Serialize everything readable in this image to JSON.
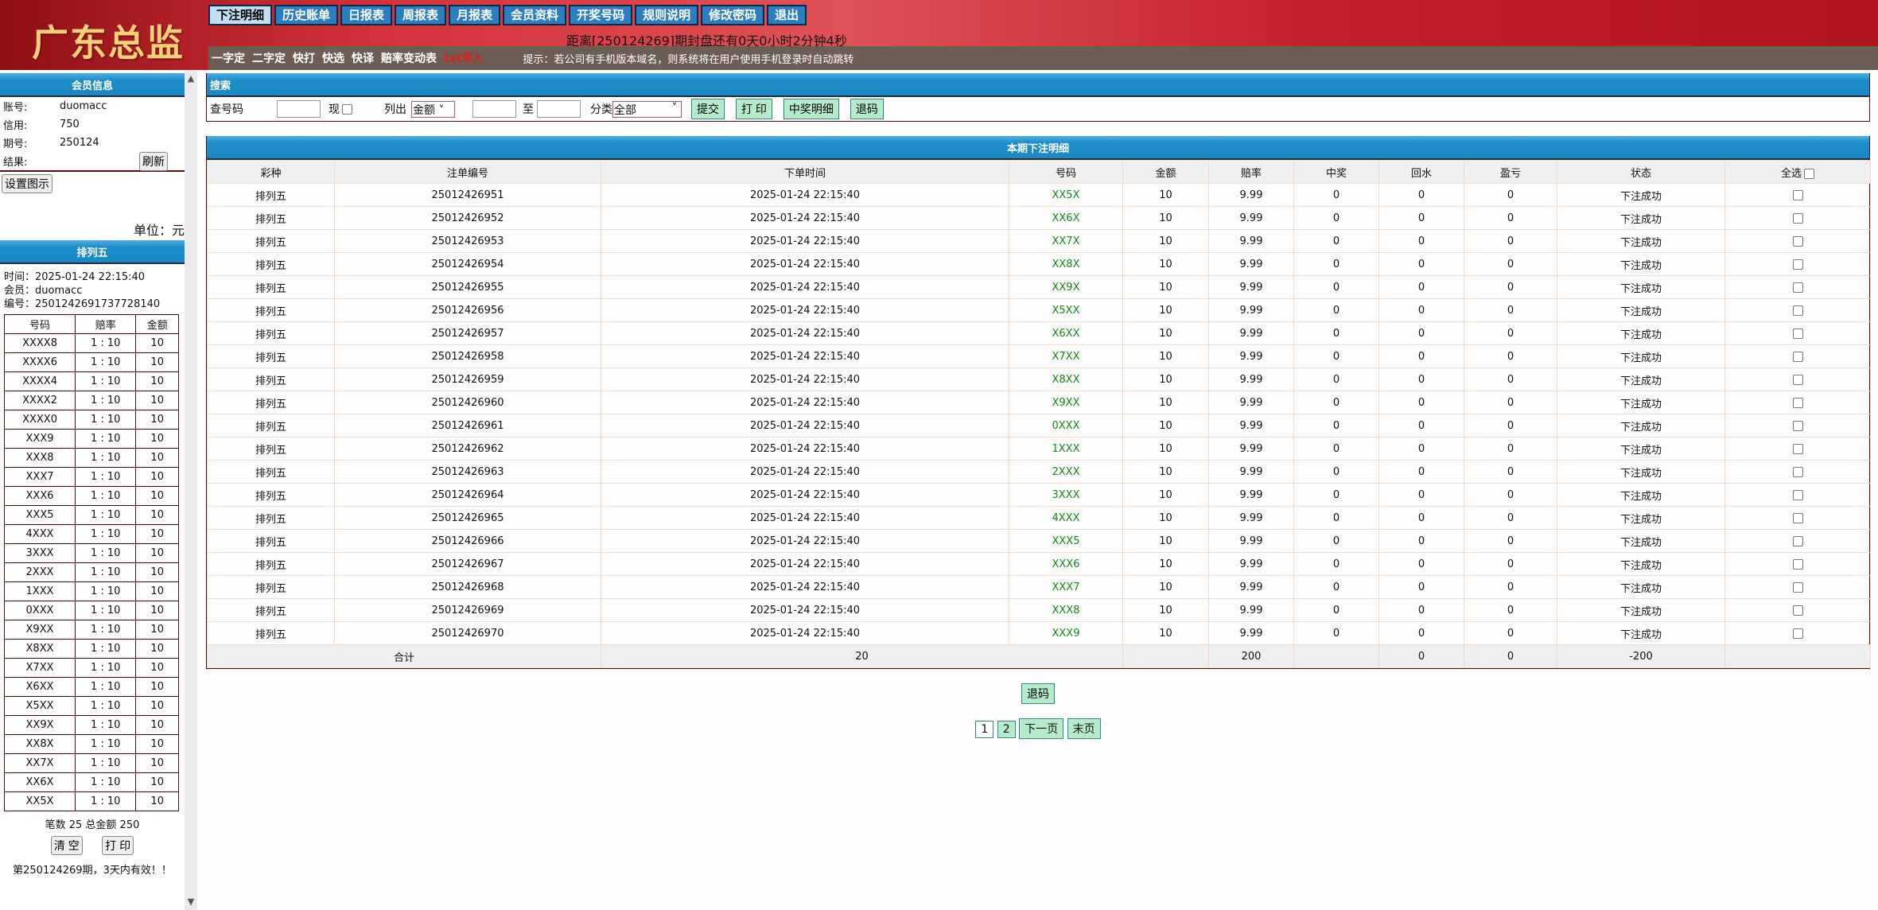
{
  "header": {
    "logo": "广东总监",
    "countdown": "距离[250124269]期封盘还有0天0小时2分钟4秒",
    "nav": [
      "下注明细",
      "历史账单",
      "日报表",
      "周报表",
      "月报表",
      "会员资料",
      "开奖号码",
      "规则说明",
      "修改密码",
      "退出"
    ],
    "active_nav": "下注明细",
    "subnav": [
      "一字定",
      "二字定",
      "快打",
      "快选",
      "快译",
      "赔率变动表"
    ],
    "subnav_red": "txt导入",
    "tip": "提示：若公司有手机版本域名，则系统将在用户使用手机登录时自动跳转"
  },
  "member": {
    "title": "会员信息",
    "rows": [
      {
        "k": "账号:",
        "v": "duomacc"
      },
      {
        "k": "信用:",
        "v": "750"
      },
      {
        "k": "期号:",
        "v": "250124"
      },
      {
        "k": "结果:",
        "v": ""
      }
    ],
    "refresh": "刷新",
    "settings": "设置图示",
    "unit": "单位：元"
  },
  "ticket": {
    "title": "排列五",
    "time": "时间：2025-01-24 22:15:40",
    "member": "会员：duomacc",
    "serial": "编号：2501242691737728140",
    "headers": [
      "号码",
      "赔率",
      "金额"
    ],
    "rows": [
      [
        "XXXX8",
        "1 : 10",
        "10"
      ],
      [
        "XXXX6",
        "1 : 10",
        "10"
      ],
      [
        "XXXX4",
        "1 : 10",
        "10"
      ],
      [
        "XXXX2",
        "1 : 10",
        "10"
      ],
      [
        "XXXX0",
        "1 : 10",
        "10"
      ],
      [
        "XXX9",
        "1 : 10",
        "10"
      ],
      [
        "XXX8",
        "1 : 10",
        "10"
      ],
      [
        "XXX7",
        "1 : 10",
        "10"
      ],
      [
        "XXX6",
        "1 : 10",
        "10"
      ],
      [
        "XXX5",
        "1 : 10",
        "10"
      ],
      [
        "4XXX",
        "1 : 10",
        "10"
      ],
      [
        "3XXX",
        "1 : 10",
        "10"
      ],
      [
        "2XXX",
        "1 : 10",
        "10"
      ],
      [
        "1XXX",
        "1 : 10",
        "10"
      ],
      [
        "0XXX",
        "1 : 10",
        "10"
      ],
      [
        "X9XX",
        "1 : 10",
        "10"
      ],
      [
        "X8XX",
        "1 : 10",
        "10"
      ],
      [
        "X7XX",
        "1 : 10",
        "10"
      ],
      [
        "X6XX",
        "1 : 10",
        "10"
      ],
      [
        "X5XX",
        "1 : 10",
        "10"
      ],
      [
        "XX9X",
        "1 : 10",
        "10"
      ],
      [
        "XX8X",
        "1 : 10",
        "10"
      ],
      [
        "XX7X",
        "1 : 10",
        "10"
      ],
      [
        "XX6X",
        "1 : 10",
        "10"
      ],
      [
        "XX5X",
        "1 : 10",
        "10"
      ]
    ],
    "summary": "笔数 25 总金额 250",
    "clear": "清 空",
    "print": "打 印",
    "notice": "第250124269期，3天内有效！！"
  },
  "search": {
    "title": "搜索",
    "code_label": "查号码",
    "now_label": "现",
    "list_label": "列出",
    "list_value": "金额",
    "to_label": "至",
    "cat_label": "分类",
    "cat_value": "全部",
    "buttons": [
      "提交",
      "打 印",
      "中奖明细",
      "退码"
    ]
  },
  "bets": {
    "title": "本期下注明细",
    "headers": [
      "彩种",
      "注单编号",
      "下单时间",
      "号码",
      "金额",
      "赔率",
      "中奖",
      "回水",
      "盈亏",
      "状态",
      "全选"
    ],
    "rows": [
      [
        "排列五",
        "25012426951",
        "2025-01-24 22:15:40",
        "XX5X",
        "10",
        "9.99",
        "0",
        "0",
        "0",
        "下注成功"
      ],
      [
        "排列五",
        "25012426952",
        "2025-01-24 22:15:40",
        "XX6X",
        "10",
        "9.99",
        "0",
        "0",
        "0",
        "下注成功"
      ],
      [
        "排列五",
        "25012426953",
        "2025-01-24 22:15:40",
        "XX7X",
        "10",
        "9.99",
        "0",
        "0",
        "0",
        "下注成功"
      ],
      [
        "排列五",
        "25012426954",
        "2025-01-24 22:15:40",
        "XX8X",
        "10",
        "9.99",
        "0",
        "0",
        "0",
        "下注成功"
      ],
      [
        "排列五",
        "25012426955",
        "2025-01-24 22:15:40",
        "XX9X",
        "10",
        "9.99",
        "0",
        "0",
        "0",
        "下注成功"
      ],
      [
        "排列五",
        "25012426956",
        "2025-01-24 22:15:40",
        "X5XX",
        "10",
        "9.99",
        "0",
        "0",
        "0",
        "下注成功"
      ],
      [
        "排列五",
        "25012426957",
        "2025-01-24 22:15:40",
        "X6XX",
        "10",
        "9.99",
        "0",
        "0",
        "0",
        "下注成功"
      ],
      [
        "排列五",
        "25012426958",
        "2025-01-24 22:15:40",
        "X7XX",
        "10",
        "9.99",
        "0",
        "0",
        "0",
        "下注成功"
      ],
      [
        "排列五",
        "25012426959",
        "2025-01-24 22:15:40",
        "X8XX",
        "10",
        "9.99",
        "0",
        "0",
        "0",
        "下注成功"
      ],
      [
        "排列五",
        "25012426960",
        "2025-01-24 22:15:40",
        "X9XX",
        "10",
        "9.99",
        "0",
        "0",
        "0",
        "下注成功"
      ],
      [
        "排列五",
        "25012426961",
        "2025-01-24 22:15:40",
        "0XXX",
        "10",
        "9.99",
        "0",
        "0",
        "0",
        "下注成功"
      ],
      [
        "排列五",
        "25012426962",
        "2025-01-24 22:15:40",
        "1XXX",
        "10",
        "9.99",
        "0",
        "0",
        "0",
        "下注成功"
      ],
      [
        "排列五",
        "25012426963",
        "2025-01-24 22:15:40",
        "2XXX",
        "10",
        "9.99",
        "0",
        "0",
        "0",
        "下注成功"
      ],
      [
        "排列五",
        "25012426964",
        "2025-01-24 22:15:40",
        "3XXX",
        "10",
        "9.99",
        "0",
        "0",
        "0",
        "下注成功"
      ],
      [
        "排列五",
        "25012426965",
        "2025-01-24 22:15:40",
        "4XXX",
        "10",
        "9.99",
        "0",
        "0",
        "0",
        "下注成功"
      ],
      [
        "排列五",
        "25012426966",
        "2025-01-24 22:15:40",
        "XXX5",
        "10",
        "9.99",
        "0",
        "0",
        "0",
        "下注成功"
      ],
      [
        "排列五",
        "25012426967",
        "2025-01-24 22:15:40",
        "XXX6",
        "10",
        "9.99",
        "0",
        "0",
        "0",
        "下注成功"
      ],
      [
        "排列五",
        "25012426968",
        "2025-01-24 22:15:40",
        "XXX7",
        "10",
        "9.99",
        "0",
        "0",
        "0",
        "下注成功"
      ],
      [
        "排列五",
        "25012426969",
        "2025-01-24 22:15:40",
        "XXX8",
        "10",
        "9.99",
        "0",
        "0",
        "0",
        "下注成功"
      ],
      [
        "排列五",
        "25012426970",
        "2025-01-24 22:15:40",
        "XXX9",
        "10",
        "9.99",
        "0",
        "0",
        "0",
        "下注成功"
      ]
    ],
    "total": {
      "label": "合计",
      "count": "20",
      "amount": "200",
      "win": "0",
      "rebate": "0",
      "profit": "-200"
    },
    "refund": "退码",
    "pages": [
      "1",
      "2"
    ],
    "current_page": "1",
    "next": "下一页",
    "last": "末页"
  },
  "colors": {
    "nav_blue": "#2b7fc0",
    "panel_blue": "#1d8fca",
    "number_green": "#118a11",
    "button_green": "#b5ebc8",
    "subbar": "#6c5e53"
  }
}
